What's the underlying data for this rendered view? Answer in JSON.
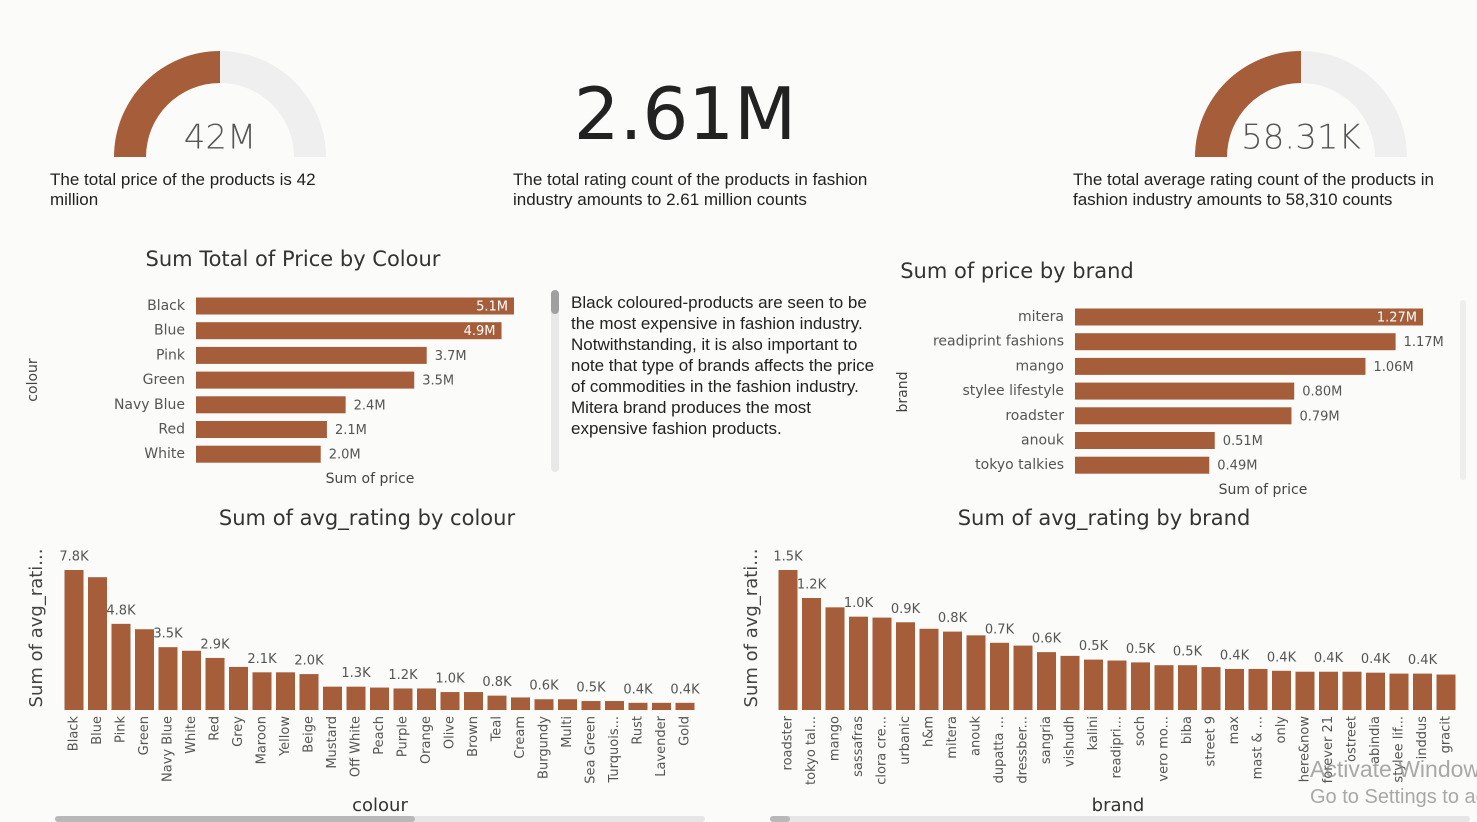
{
  "chart_data": [
    {
      "type": "gauge",
      "values": [
        42000000
      ],
      "value_labels": [
        "42M"
      ],
      "ylim": [
        0,
        84000000
      ],
      "color": "#a65e3a",
      "caption": "The total price of the products is 42 million"
    },
    {
      "type": "gauge",
      "values": [
        58310
      ],
      "value_labels": [
        "58.31K"
      ],
      "ylim": [
        0,
        116620
      ],
      "color": "#a65e3a",
      "caption": "The total average rating count of the products in fashion industry amounts to 58,310 counts"
    },
    {
      "type": "bar",
      "orientation": "horizontal",
      "title": "Sum Total of Price by Colour",
      "x_label": "Sum of price",
      "y_label": "colour",
      "color": "#a65e3a",
      "categories": [
        "Black",
        "Blue",
        "Pink",
        "Green",
        "Navy Blue",
        "Red",
        "White"
      ],
      "values": [
        5100000,
        4900000,
        3700000,
        3500000,
        2400000,
        2100000,
        2000000
      ],
      "value_labels": [
        "5.1M",
        "4.9M",
        "3.7M",
        "3.5M",
        "2.4M",
        "2.1M",
        "2.0M"
      ]
    },
    {
      "type": "bar",
      "orientation": "horizontal",
      "title": "Sum of price by brand",
      "x_label": "Sum of price",
      "y_label": "brand",
      "color": "#a65e3a",
      "categories": [
        "mitera",
        "readiprint fashions",
        "mango",
        "stylee lifestyle",
        "roadster",
        "anouk",
        "tokyo talkies"
      ],
      "values": [
        1270000,
        1170000,
        1060000,
        800000,
        790000,
        510000,
        490000
      ],
      "value_labels": [
        "1.27M",
        "1.17M",
        "1.06M",
        "0.80M",
        "0.79M",
        "0.51M",
        "0.49M"
      ]
    },
    {
      "type": "bar",
      "orientation": "vertical",
      "title": "Sum of avg_rating by colour",
      "x_label": "colour",
      "y_label": "Sum of avg_rati...",
      "color": "#a65e3a",
      "categories": [
        "Black",
        "Blue",
        "Pink",
        "Green",
        "Navy Blue",
        "White",
        "Red",
        "Grey",
        "Maroon",
        "Yellow",
        "Beige",
        "Mustard",
        "Off White",
        "Peach",
        "Purple",
        "Orange",
        "Olive",
        "Brown",
        "Teal",
        "Cream",
        "Burgundy",
        "Multi",
        "Sea Green",
        "Turquois...",
        "Rust",
        "Lavender",
        "Gold"
      ],
      "values": [
        7800,
        7400,
        4800,
        4500,
        3500,
        3300,
        2900,
        2400,
        2100,
        2100,
        2000,
        1300,
        1300,
        1250,
        1200,
        1200,
        1000,
        1000,
        800,
        700,
        600,
        600,
        500,
        500,
        400,
        400,
        400
      ],
      "value_labels": [
        "7.8K",
        null,
        "4.8K",
        null,
        "3.5K",
        null,
        "2.9K",
        null,
        "2.1K",
        null,
        "2.0K",
        null,
        "1.3K",
        null,
        "1.2K",
        null,
        "1.0K",
        null,
        "0.8K",
        null,
        "0.6K",
        null,
        "0.5K",
        null,
        "0.4K",
        null,
        "0.4K"
      ]
    },
    {
      "type": "bar",
      "orientation": "vertical",
      "title": "Sum of avg_rating by brand",
      "x_label": "brand",
      "y_label": "Sum of avg_rati...",
      "color": "#a65e3a",
      "categories": [
        "roadster",
        "tokyo tal...",
        "mango",
        "sassafras",
        "clora cre...",
        "urbanic",
        "h&m",
        "mitera",
        "anouk",
        "dupatta ...",
        "dressber...",
        "sangria",
        "vishudh",
        "kalini",
        "readipri...",
        "soch",
        "vero mo...",
        "biba",
        "street 9",
        "max",
        "mast & ...",
        "only",
        "here&now",
        "forever 21",
        "ostreet",
        "abindia",
        "stylee lif...",
        "inddus",
        "gracit"
      ],
      "values": [
        1500,
        1200,
        1100,
        1000,
        990,
        940,
        870,
        840,
        800,
        720,
        690,
        620,
        580,
        540,
        530,
        510,
        480,
        480,
        460,
        440,
        440,
        420,
        410,
        410,
        410,
        400,
        390,
        390,
        380
      ],
      "value_labels": [
        "1.5K",
        "1.2K",
        null,
        "1.0K",
        null,
        "0.9K",
        null,
        "0.8K",
        null,
        "0.7K",
        null,
        "0.6K",
        null,
        "0.5K",
        null,
        "0.5K",
        null,
        "0.5K",
        null,
        "0.4K",
        null,
        "0.4K",
        null,
        "0.4K",
        null,
        "0.4K",
        null,
        "0.4K",
        null
      ]
    }
  ],
  "kpi": {
    "value": "2.61M",
    "caption": "The total rating count of the products in fashion industry amounts to 2.61 million counts"
  },
  "insight": "Black coloured-products are seen to be the most expensive in fashion industry. Notwithstanding, it is also important to note that type of brands affects the price of commodities in the fashion industry. Mitera brand produces the most expensive fashion products.",
  "watermark": {
    "line1": "Activate Windows",
    "line2": "Go to Settings to activate Windows."
  }
}
